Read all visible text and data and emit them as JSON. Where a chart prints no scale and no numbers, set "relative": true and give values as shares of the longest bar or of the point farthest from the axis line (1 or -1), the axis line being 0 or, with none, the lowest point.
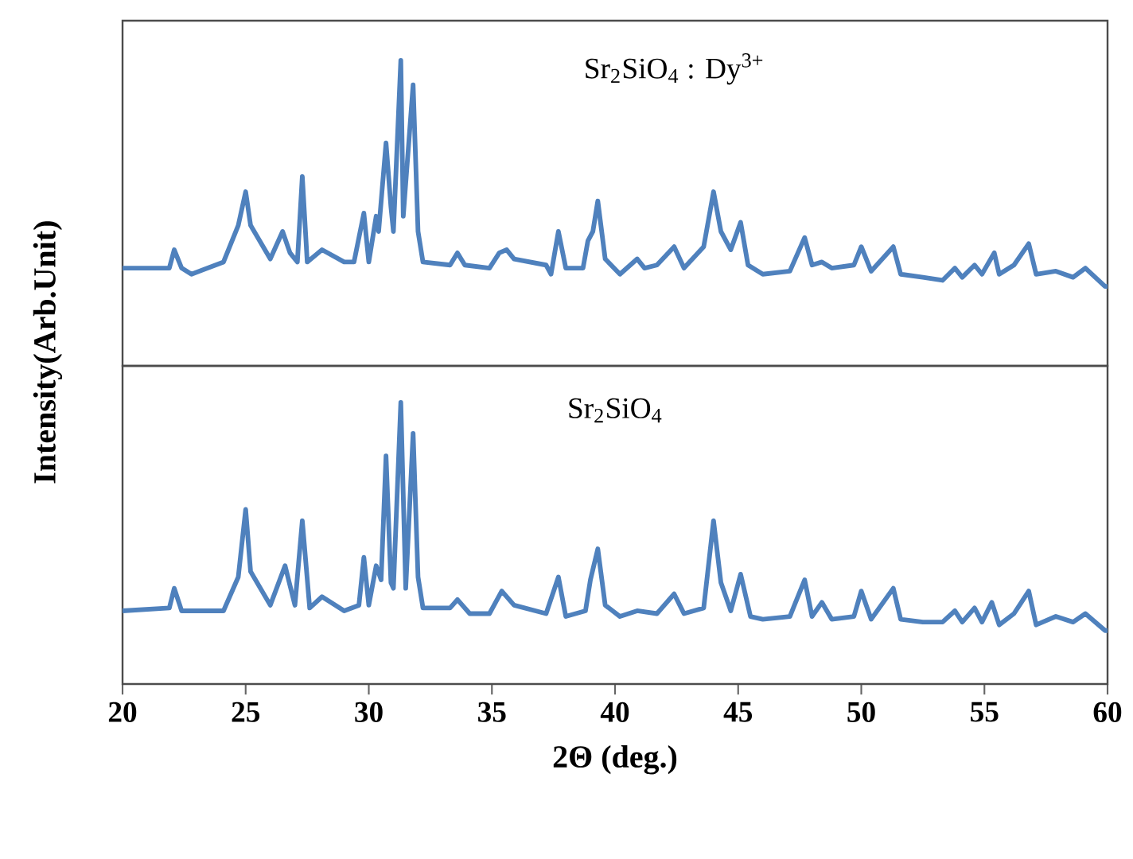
{
  "chart_data": [
    {
      "type": "line",
      "relative": true,
      "ylabel": "Intensity(Arb.Unit)",
      "annotations": [
        "Sr$_{2}$SiO$_{4}$ : Dy$^{3+}$"
      ],
      "xlim": [
        20,
        60
      ],
      "tick_labels": false,
      "series": [
        {
          "color": "#4f81bd",
          "x": [
            20,
            21.9,
            22.1,
            22.4,
            22.8,
            24.1,
            24.7,
            25.0,
            25.2,
            26.0,
            26.5,
            26.8,
            27.1,
            27.3,
            27.5,
            28.1,
            29.0,
            29.4,
            29.8,
            30.0,
            30.3,
            30.4,
            30.7,
            30.9,
            31.0,
            31.3,
            31.4,
            31.8,
            32.0,
            32.2,
            33.3,
            33.6,
            33.9,
            34.9,
            35.3,
            35.6,
            35.9,
            37.2,
            37.4,
            37.7,
            38.0,
            38.7,
            38.9,
            39.1,
            39.3,
            39.6,
            40.2,
            40.9,
            41.2,
            41.7,
            42.4,
            42.8,
            43.6,
            44.0,
            44.3,
            44.7,
            45.1,
            45.4,
            46.0,
            47.1,
            47.7,
            48.0,
            48.4,
            48.8,
            49.7,
            50.0,
            50.4,
            51.3,
            51.6,
            52.5,
            53.3,
            53.8,
            54.1,
            54.6,
            54.9,
            55.4,
            55.6,
            56.2,
            56.8,
            57.1,
            57.9,
            58.6,
            59.1,
            59.5,
            59.9,
            60
          ],
          "values": [
            0.32,
            0.32,
            0.38,
            0.32,
            0.3,
            0.34,
            0.46,
            0.57,
            0.46,
            0.35,
            0.44,
            0.37,
            0.34,
            0.62,
            0.34,
            0.38,
            0.34,
            0.34,
            0.5,
            0.34,
            0.49,
            0.44,
            0.73,
            0.52,
            0.44,
            1.0,
            0.49,
            0.92,
            0.44,
            0.34,
            0.33,
            0.37,
            0.33,
            0.32,
            0.37,
            0.38,
            0.35,
            0.33,
            0.3,
            0.44,
            0.32,
            0.32,
            0.41,
            0.44,
            0.54,
            0.35,
            0.3,
            0.35,
            0.32,
            0.33,
            0.39,
            0.32,
            0.39,
            0.57,
            0.44,
            0.38,
            0.47,
            0.33,
            0.3,
            0.31,
            0.42,
            0.33,
            0.34,
            0.32,
            0.33,
            0.39,
            0.31,
            0.39,
            0.3,
            0.29,
            0.28,
            0.32,
            0.29,
            0.33,
            0.3,
            0.37,
            0.3,
            0.33,
            0.4,
            0.3,
            0.31,
            0.29,
            0.32,
            0.29,
            0.26,
            0.26
          ]
        }
      ]
    },
    {
      "type": "line",
      "relative": true,
      "xlabel": "2Θ (deg.)",
      "annotations": [
        "Sr$_{2}$SiO$_{4}$"
      ],
      "xlim": [
        20,
        60
      ],
      "xticks": [
        20,
        25,
        30,
        35,
        40,
        45,
        50,
        55,
        60
      ],
      "tick_labels": "x",
      "series": [
        {
          "color": "#4f81bd",
          "x": [
            20,
            21.9,
            22.1,
            22.4,
            24.1,
            24.7,
            25.0,
            25.2,
            26.0,
            26.6,
            27.0,
            27.3,
            27.6,
            28.1,
            29.0,
            29.6,
            29.8,
            30.0,
            30.3,
            30.5,
            30.7,
            30.9,
            31.0,
            31.3,
            31.5,
            31.8,
            32.0,
            32.2,
            33.3,
            33.6,
            34.1,
            34.9,
            35.4,
            35.9,
            37.2,
            37.7,
            38.0,
            38.8,
            39.0,
            39.3,
            39.6,
            40.2,
            40.9,
            41.7,
            42.4,
            42.8,
            43.6,
            44.0,
            44.3,
            44.7,
            45.1,
            45.5,
            46.0,
            47.1,
            47.7,
            48.0,
            48.4,
            48.8,
            49.7,
            50.0,
            50.4,
            51.3,
            51.6,
            52.5,
            53.3,
            53.8,
            54.1,
            54.6,
            54.9,
            55.3,
            55.6,
            56.2,
            56.8,
            57.1,
            57.9,
            58.6,
            59.1,
            59.5,
            59.9,
            60
          ],
          "values": [
            0.26,
            0.27,
            0.34,
            0.26,
            0.26,
            0.38,
            0.62,
            0.4,
            0.28,
            0.42,
            0.28,
            0.58,
            0.27,
            0.31,
            0.26,
            0.28,
            0.45,
            0.28,
            0.42,
            0.37,
            0.81,
            0.36,
            0.34,
            1.0,
            0.34,
            0.89,
            0.38,
            0.27,
            0.27,
            0.3,
            0.25,
            0.25,
            0.33,
            0.28,
            0.25,
            0.38,
            0.24,
            0.26,
            0.37,
            0.48,
            0.28,
            0.24,
            0.26,
            0.25,
            0.32,
            0.25,
            0.27,
            0.58,
            0.36,
            0.26,
            0.39,
            0.24,
            0.23,
            0.24,
            0.37,
            0.24,
            0.29,
            0.23,
            0.24,
            0.33,
            0.23,
            0.34,
            0.23,
            0.22,
            0.22,
            0.26,
            0.22,
            0.27,
            0.22,
            0.29,
            0.21,
            0.25,
            0.33,
            0.21,
            0.24,
            0.22,
            0.25,
            0.22,
            0.19,
            0.19
          ]
        }
      ]
    }
  ]
}
